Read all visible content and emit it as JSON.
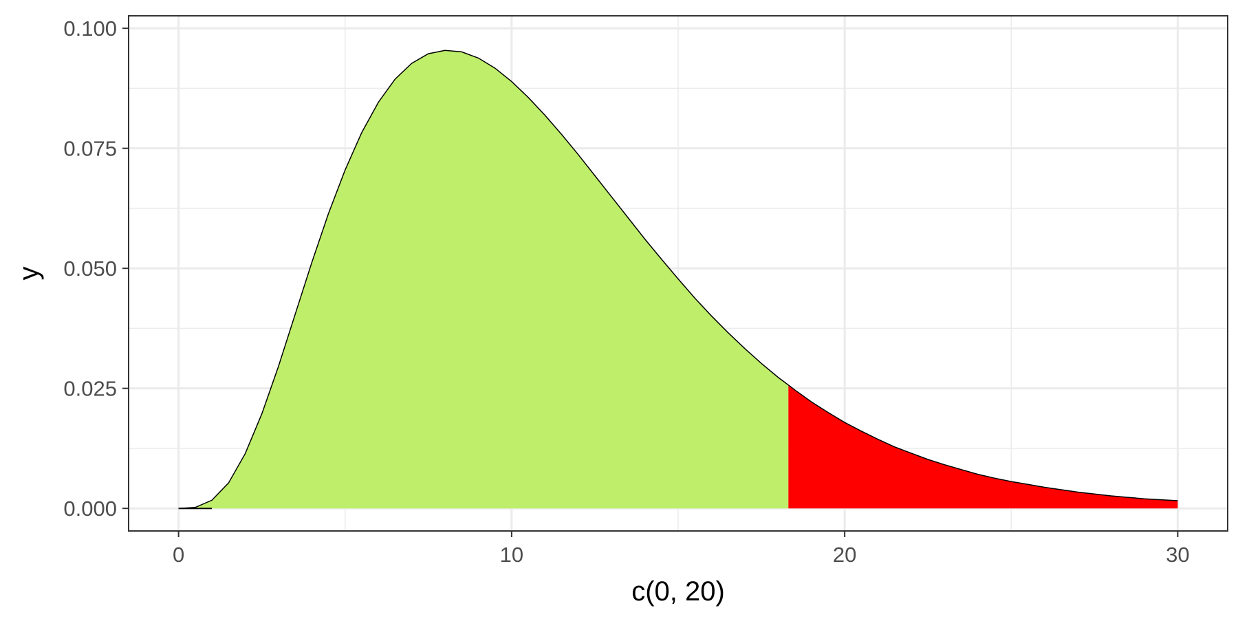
{
  "chart_data": {
    "type": "area",
    "title": "",
    "xlabel": "c(0, 20)",
    "ylabel": "y",
    "xlim": [
      -1.5,
      31.5
    ],
    "ylim": [
      -0.0047,
      0.1026
    ],
    "x_ticks": [
      0,
      10,
      20,
      30
    ],
    "x_tick_labels": [
      "0",
      "10",
      "20",
      "30"
    ],
    "x_minor_ticks": [
      5,
      15,
      25
    ],
    "y_ticks": [
      0,
      0.025,
      0.05,
      0.075,
      0.1
    ],
    "y_tick_labels": [
      "0.000",
      "0.025",
      "0.050",
      "0.075",
      "0.100"
    ],
    "y_minor_ticks": [
      0.0125,
      0.0375,
      0.0625,
      0.0875
    ],
    "grid": true,
    "theme": "bw",
    "series": [
      {
        "x": [
          0,
          0.5,
          1,
          1.5,
          2,
          2.5,
          3,
          3.5,
          4,
          4.5,
          5,
          5.5,
          6,
          6.5,
          7,
          7.5,
          8,
          8.5,
          9,
          9.5,
          10,
          10.5,
          11,
          11.5,
          12,
          12.5,
          13,
          13.5,
          14,
          14.5,
          15,
          15.5,
          16,
          16.5,
          17,
          17.5,
          18,
          18.31,
          18.5,
          19,
          19.5,
          20,
          20.5,
          21,
          21.5,
          22,
          22.5,
          23,
          23.5,
          24,
          24.5,
          25,
          25.5,
          26,
          26.5,
          27,
          27.5,
          28,
          28.5,
          29,
          29.5,
          30
        ],
        "values": [
          0,
          0.0002,
          0.0017,
          0.0053,
          0.0114,
          0.0197,
          0.0296,
          0.0404,
          0.0512,
          0.0614,
          0.0705,
          0.0783,
          0.0846,
          0.0894,
          0.0927,
          0.0947,
          0.0954,
          0.0951,
          0.0938,
          0.0917,
          0.0889,
          0.0856,
          0.0819,
          0.0779,
          0.0737,
          0.0693,
          0.0649,
          0.0605,
          0.0561,
          0.0519,
          0.0478,
          0.0438,
          0.0401,
          0.0366,
          0.0333,
          0.0302,
          0.0273,
          0.0257,
          0.0247,
          0.0222,
          0.02,
          0.0179,
          0.0161,
          0.0144,
          0.0128,
          0.0115,
          0.0102,
          0.0091,
          0.0081,
          0.0071,
          0.0063,
          0.0056,
          0.005,
          0.0044,
          0.0039,
          0.0034,
          0.003,
          0.0026,
          0.0023,
          0.002,
          0.0018,
          0.0016
        ]
      }
    ],
    "shaded_regions": [
      {
        "from": 0,
        "to": 18.31,
        "color": "#bfee6b"
      },
      {
        "from": 18.31,
        "to": 30,
        "color": "#ff0000"
      }
    ],
    "line_color": "#000000"
  }
}
